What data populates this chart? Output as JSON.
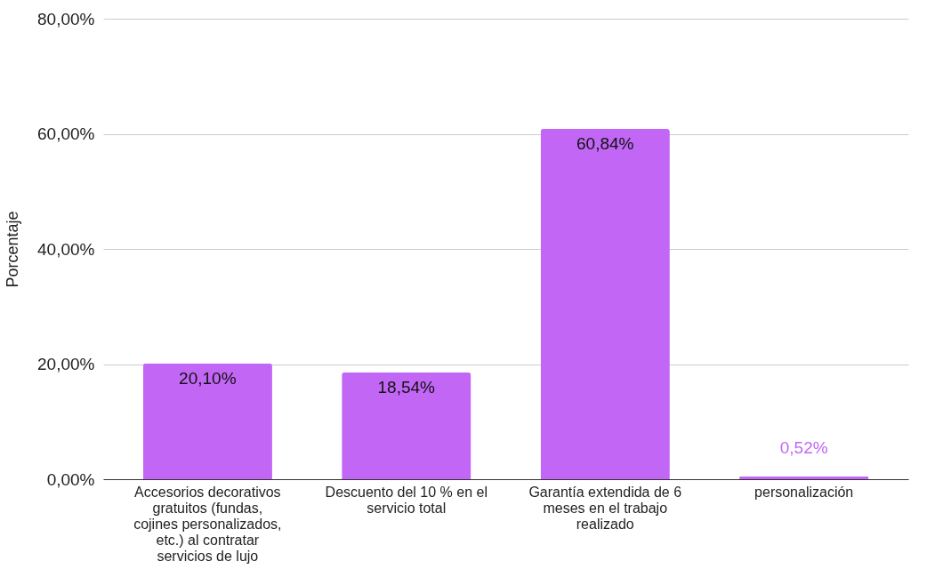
{
  "chart_data": {
    "type": "bar",
    "ylabel": "Porcentaje",
    "categories": [
      "Accesorios decorativos gratuitos (fundas, cojines personalizados, etc.) al contratar servicios de lujo",
      "Descuento del 10 % en el servicio total",
      "Garantía extendida de 6 meses en el trabajo realizado",
      "personalización"
    ],
    "values": [
      20.1,
      18.54,
      60.84,
      0.52
    ],
    "value_labels": [
      "20,10%",
      "18,54%",
      "60,84%",
      "0,52%"
    ],
    "color": "#c266f5",
    "ylim": [
      0,
      80
    ],
    "yticks": [
      {
        "value": 0,
        "label": "0,00%"
      },
      {
        "value": 20,
        "label": "20,00%"
      },
      {
        "value": 40,
        "label": "40,00%"
      },
      {
        "value": 60,
        "label": "60,00%"
      },
      {
        "value": 80,
        "label": "80,00%"
      }
    ],
    "grid": "y"
  }
}
